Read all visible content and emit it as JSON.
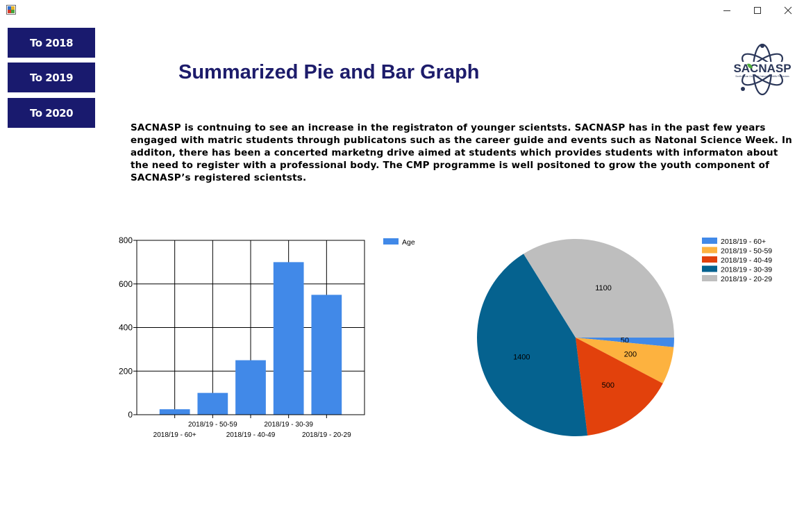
{
  "nav": {
    "buttons": [
      {
        "label": "To 2018"
      },
      {
        "label": "To 2019"
      },
      {
        "label": "To 2020"
      }
    ]
  },
  "header": {
    "title": "Summarized Pie and Bar Graph",
    "logo_text": "SACNASP",
    "logo_subtitle": "South African Council for Natural Scientific Professions"
  },
  "description": "SACNASP is contnuing to see an increase in the registraton of younger scientsts. SACNASP has in the past few years engaged with matric students through publicatons such as the career guide and events such as Natonal Science Week. In additon, there has been a concerted marketng drive aimed at students which provides students with informaton about the need to register with a professional body. The CMP programme is well positoned to grow the youth component of SACNASP’s registered scientsts.",
  "window": {
    "icons": [
      "app-icon",
      "minimize-icon",
      "maximize-icon",
      "close-icon"
    ]
  },
  "chart_data": [
    {
      "type": "bar",
      "categories": [
        "2018/19 - 60+",
        "2018/19 - 50-59",
        "2018/19 - 40-49",
        "2018/19 - 30-39",
        "2018/19 - 20-29"
      ],
      "series": [
        {
          "name": "Age",
          "values": [
            25,
            100,
            250,
            700,
            550
          ],
          "color": "#4189e8"
        }
      ],
      "yticks": [
        0,
        200,
        400,
        600,
        800
      ],
      "ylim": [
        0,
        800
      ],
      "grid": true,
      "legend": "top-right"
    },
    {
      "type": "pie",
      "labels": [
        "2018/19 - 60+",
        "2018/19 - 50-59",
        "2018/19 - 40-49",
        "2018/19 - 30-39",
        "2018/19 - 20-29"
      ],
      "values": [
        50,
        200,
        500,
        1400,
        1100
      ],
      "colors": [
        "#4189e8",
        "#fdb23f",
        "#e2410c",
        "#05628f",
        "#bebebe"
      ],
      "legend": "top-right"
    }
  ]
}
